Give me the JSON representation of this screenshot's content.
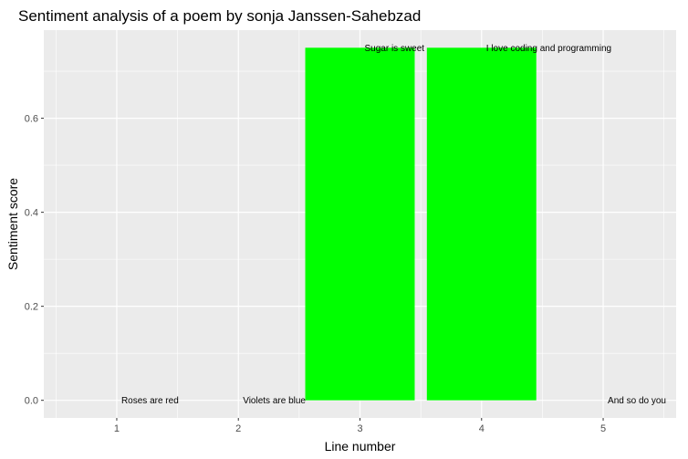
{
  "chart_data": {
    "type": "bar",
    "title": "Sentiment analysis of a poem by sonja Janssen-Sahebzad",
    "xlabel": "Line number",
    "ylabel": "Sentiment score",
    "x": [
      1,
      2,
      3,
      4,
      5
    ],
    "values": [
      0.0,
      0.0,
      0.75,
      0.75,
      0.0
    ],
    "line_labels": [
      "Roses are red",
      "Violets are blue",
      "Sugar is sweet",
      "I love coding and programming",
      "And so do you"
    ],
    "x_ticks": [
      "1",
      "2",
      "3",
      "4",
      "5"
    ],
    "y_ticks": [
      "0.0",
      "0.2",
      "0.4",
      "0.6"
    ],
    "xlim": [
      0.4,
      5.6
    ],
    "ylim": [
      -0.0375,
      0.7875
    ],
    "bar_color": "#00FF00",
    "panel_background": "#EBEBEB",
    "grid": true,
    "legend": "none"
  }
}
